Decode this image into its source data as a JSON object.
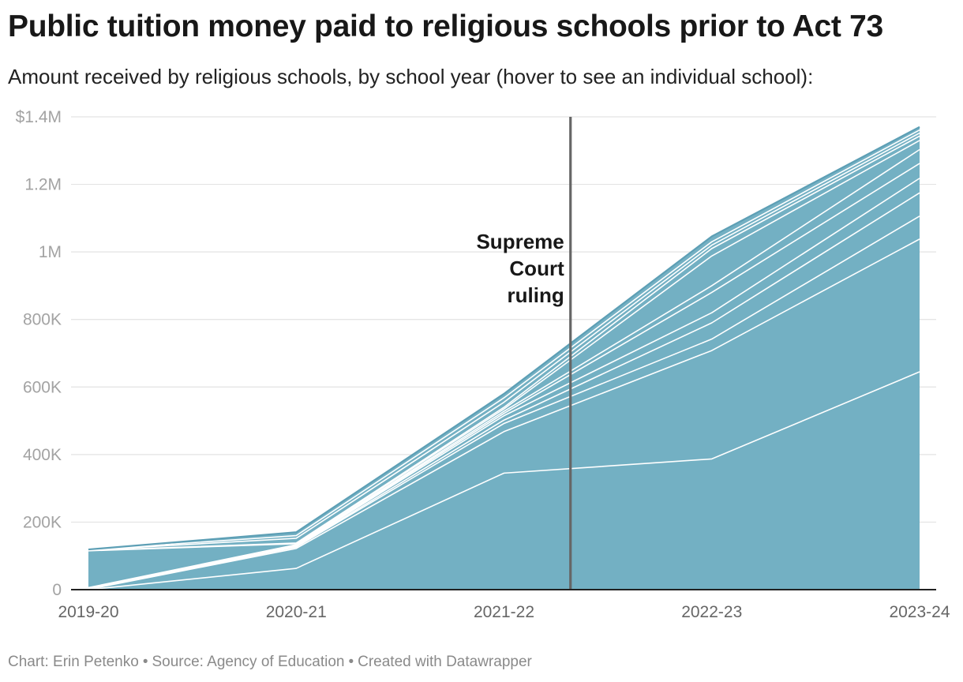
{
  "title": "Public tuition money paid to religious schools prior to Act 73",
  "subtitle": "Amount received by religious schools, by school year (hover to see an individual school):",
  "footer": {
    "credit": "Chart: Erin Petenko",
    "source": "Source: Agency of Education",
    "tool": "Created with Datawrapper",
    "separator": "•"
  },
  "colors": {
    "area_fill": "#73b0c3",
    "area_edge": "#5d9fb5",
    "layer_line": "#ffffff",
    "grid": "#e3e3e3",
    "axis": "#222222",
    "tick_label": "#a3a3a3",
    "x_tick_label": "#666666",
    "annotation_line": "#666666",
    "annotation_text": "#181818"
  },
  "chart_data": {
    "type": "area",
    "stacked": true,
    "title": "Public tuition money paid to religious schools prior to Act 73",
    "subtitle": "Amount received by religious schools, by school year (hover to see an individual school):",
    "xlabel": "",
    "ylabel": "",
    "categories": [
      "2019-20",
      "2020-21",
      "2021-22",
      "2022-23",
      "2023-24"
    ],
    "ylim": [
      0,
      1400000
    ],
    "yticks": [
      0,
      200000,
      400000,
      600000,
      800000,
      1000000,
      1200000,
      1400000
    ],
    "ytick_labels": [
      "0",
      "200K",
      "400K",
      "600K",
      "800K",
      "1M",
      "1.2M",
      "$1.4M"
    ],
    "grid": true,
    "legend": "none",
    "cumulative_layer_tops": [
      [
        0,
        63000,
        345000,
        387000,
        645000
      ],
      [
        1000,
        122000,
        468000,
        708000,
        1038000
      ],
      [
        2000,
        126000,
        492000,
        742000,
        1106000
      ],
      [
        3000,
        128000,
        502000,
        790000,
        1175000
      ],
      [
        4000,
        130000,
        515000,
        820000,
        1218000
      ],
      [
        5000,
        131000,
        522000,
        880000,
        1262000
      ],
      [
        6000,
        133000,
        528000,
        900000,
        1303000
      ],
      [
        115000,
        136000,
        535000,
        988000,
        1330000
      ],
      [
        116000,
        138000,
        540000,
        1010000,
        1343000
      ],
      [
        117000,
        152000,
        555000,
        1020000,
        1352000
      ],
      [
        118000,
        160000,
        568000,
        1030000,
        1361000
      ],
      [
        119000,
        170000,
        580000,
        1046000,
        1370000
      ]
    ],
    "annotations": [
      {
        "type": "vertical-line",
        "x_position_between": [
          "2021-22",
          "2022-23"
        ],
        "x_fraction": 0.58,
        "label": [
          "Supreme",
          "Court",
          "ruling"
        ]
      }
    ]
  }
}
